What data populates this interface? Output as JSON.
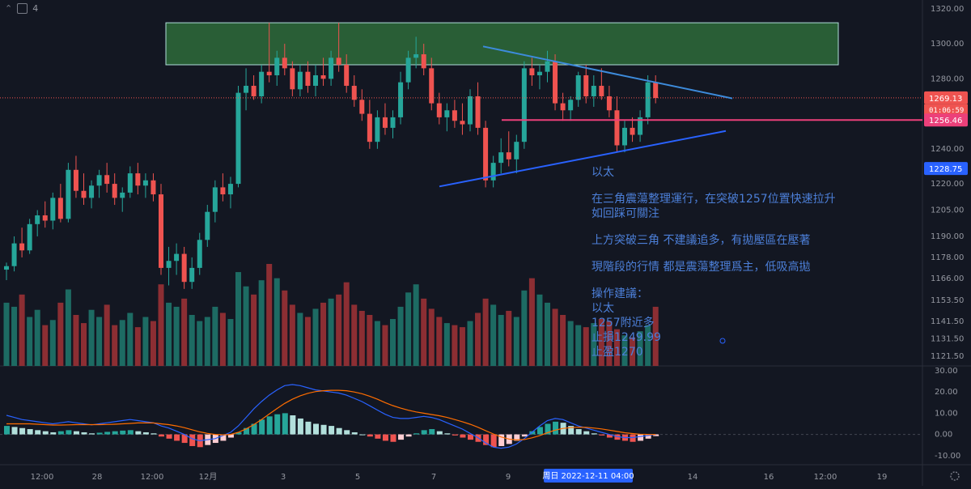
{
  "topbar": {
    "count": "4"
  },
  "colors": {
    "bg": "#131722",
    "up": "#26a69a",
    "down": "#ef5350",
    "upVol": "#1d6b63",
    "downVol": "#8c2e33",
    "trend": "#2962ff",
    "trendTop": "#3d8bdb",
    "support": "#ec407a",
    "zoneFill": "#2e6b3a",
    "zoneStroke": "#b2dfdb",
    "text": "#9598a1",
    "annot": "#4c7fd8"
  },
  "annotation": {
    "title": "以太",
    "line1": "在三角震蕩整理運行，在突破1257位置快速拉升",
    "line2": "如回踩可關注",
    "line3": "上方突破三角 不建議追多，有拋壓區在壓著",
    "line4": "現階段的行情 都是震蕩整理爲主，低吸高拋",
    "line5": "操作建議：",
    "line6": "以太",
    "line7": "1257附近多",
    "line8": "止損1249.99",
    "line9": "止盈1270"
  },
  "price_tags": {
    "current": "1269.13",
    "countdown": "01:06:59",
    "support": "1256.46",
    "crosshair": "1228.75"
  },
  "crosshair_date": "周日 2022-12-11  04:00",
  "chart_data": [
    {
      "type": "candlestick",
      "ylim": [
        1116,
        1325
      ],
      "y_ticks": [
        "1320.00",
        "1300.00",
        "1280.00",
        "1269.13",
        "1256.46",
        "1240.00",
        "1228.75",
        "1220.00",
        "1205.00",
        "1190.00",
        "1178.00",
        "1166.00",
        "1153.50",
        "1141.50",
        "1131.50",
        "1121.50"
      ],
      "x_ticks": [
        "12:00",
        "28",
        "12:00",
        "12月",
        "3",
        "5",
        "7",
        "9",
        "14",
        "16",
        "12:00",
        "19"
      ],
      "zone": {
        "from": 1288,
        "to": 1312
      },
      "support_level": 1256.46,
      "current_price": 1269.13,
      "triangle_upper": [
        [
          1298.5
        ],
        [
          1268.8
        ]
      ],
      "triangle_lower": [
        [
          1218.5
        ],
        [
          1250.2
        ]
      ],
      "candles": [
        [
          1171,
          1175,
          1165,
          1173
        ],
        [
          1173,
          1190,
          1170,
          1186
        ],
        [
          1186,
          1195,
          1178,
          1182
        ],
        [
          1182,
          1200,
          1180,
          1197
        ],
        [
          1197,
          1205,
          1190,
          1202
        ],
        [
          1202,
          1210,
          1195,
          1199
        ],
        [
          1199,
          1215,
          1194,
          1212
        ],
        [
          1212,
          1220,
          1198,
          1200
        ],
        [
          1200,
          1232,
          1198,
          1228
        ],
        [
          1228,
          1236,
          1212,
          1216
        ],
        [
          1216,
          1226,
          1208,
          1212
        ],
        [
          1212,
          1222,
          1206,
          1219
        ],
        [
          1219,
          1228,
          1212,
          1225
        ],
        [
          1225,
          1232,
          1215,
          1220
        ],
        [
          1220,
          1226,
          1208,
          1212
        ],
        [
          1212,
          1218,
          1204,
          1215
        ],
        [
          1215,
          1230,
          1212,
          1226
        ],
        [
          1226,
          1232,
          1214,
          1219
        ],
        [
          1219,
          1226,
          1212,
          1222
        ],
        [
          1222,
          1226,
          1210,
          1214
        ],
        [
          1214,
          1220,
          1168,
          1172
        ],
        [
          1172,
          1184,
          1162,
          1176
        ],
        [
          1176,
          1186,
          1168,
          1180
        ],
        [
          1180,
          1184,
          1160,
          1164
        ],
        [
          1164,
          1178,
          1160,
          1172
        ],
        [
          1172,
          1192,
          1168,
          1188
        ],
        [
          1188,
          1208,
          1184,
          1204
        ],
        [
          1204,
          1222,
          1198,
          1218
        ],
        [
          1218,
          1226,
          1210,
          1214
        ],
        [
          1214,
          1224,
          1206,
          1220
        ],
        [
          1220,
          1276,
          1218,
          1272
        ],
        [
          1272,
          1286,
          1262,
          1276
        ],
        [
          1276,
          1282,
          1268,
          1270
        ],
        [
          1270,
          1288,
          1266,
          1284
        ],
        [
          1284,
          1312,
          1278,
          1282
        ],
        [
          1282,
          1296,
          1276,
          1292
        ],
        [
          1292,
          1300,
          1282,
          1286
        ],
        [
          1286,
          1290,
          1270,
          1274
        ],
        [
          1274,
          1288,
          1270,
          1284
        ],
        [
          1284,
          1290,
          1272,
          1276
        ],
        [
          1276,
          1288,
          1270,
          1282
        ],
        [
          1282,
          1292,
          1276,
          1280
        ],
        [
          1280,
          1296,
          1276,
          1292
        ],
        [
          1292,
          1312,
          1284,
          1288
        ],
        [
          1288,
          1294,
          1272,
          1276
        ],
        [
          1276,
          1282,
          1264,
          1268
        ],
        [
          1268,
          1274,
          1256,
          1260
        ],
        [
          1260,
          1268,
          1240,
          1244
        ],
        [
          1244,
          1262,
          1240,
          1258
        ],
        [
          1258,
          1266,
          1248,
          1252
        ],
        [
          1252,
          1262,
          1246,
          1258
        ],
        [
          1258,
          1284,
          1254,
          1278
        ],
        [
          1278,
          1296,
          1274,
          1292
        ],
        [
          1292,
          1304,
          1286,
          1294
        ],
        [
          1294,
          1300,
          1282,
          1286
        ],
        [
          1286,
          1292,
          1262,
          1266
        ],
        [
          1266,
          1272,
          1254,
          1258
        ],
        [
          1258,
          1266,
          1250,
          1262
        ],
        [
          1262,
          1268,
          1252,
          1256
        ],
        [
          1256,
          1266,
          1248,
          1254
        ],
        [
          1254,
          1274,
          1250,
          1270
        ],
        [
          1270,
          1278,
          1248,
          1252
        ],
        [
          1252,
          1256,
          1218,
          1222
        ],
        [
          1222,
          1236,
          1218,
          1232
        ],
        [
          1232,
          1246,
          1226,
          1238
        ],
        [
          1238,
          1250,
          1230,
          1234
        ],
        [
          1234,
          1248,
          1226,
          1244
        ],
        [
          1244,
          1290,
          1240,
          1286
        ],
        [
          1286,
          1292,
          1276,
          1282
        ],
        [
          1282,
          1288,
          1274,
          1284
        ],
        [
          1284,
          1296,
          1278,
          1290
        ],
        [
          1290,
          1294,
          1262,
          1266
        ],
        [
          1266,
          1272,
          1256,
          1262
        ],
        [
          1262,
          1270,
          1256,
          1268
        ],
        [
          1268,
          1284,
          1264,
          1282
        ],
        [
          1282,
          1288,
          1266,
          1270
        ],
        [
          1270,
          1282,
          1264,
          1276
        ],
        [
          1276,
          1286,
          1268,
          1270
        ],
        [
          1270,
          1276,
          1258,
          1262
        ],
        [
          1262,
          1270,
          1238,
          1242
        ],
        [
          1242,
          1256,
          1238,
          1252
        ],
        [
          1252,
          1258,
          1244,
          1248
        ],
        [
          1248,
          1262,
          1244,
          1258
        ],
        [
          1258,
          1282,
          1254,
          1278
        ],
        [
          1278,
          1282,
          1266,
          1269
        ]
      ],
      "volumes": [
        62,
        58,
        70,
        48,
        55,
        40,
        45,
        62,
        75,
        50,
        42,
        55,
        48,
        60,
        40,
        45,
        52,
        38,
        48,
        44,
        80,
        62,
        58,
        66,
        50,
        44,
        48,
        58,
        52,
        46,
        92,
        78,
        70,
        84,
        100,
        86,
        74,
        60,
        52,
        48,
        56,
        62,
        66,
        70,
        82,
        60,
        54,
        50,
        44,
        40,
        46,
        58,
        72,
        80,
        66,
        56,
        48,
        42,
        40,
        38,
        44,
        52,
        66,
        60,
        50,
        54,
        48,
        74,
        86,
        70,
        62,
        56,
        50,
        44,
        40,
        38,
        42,
        46,
        44,
        36,
        30,
        28,
        34,
        40,
        58
      ]
    },
    {
      "type": "macd",
      "ylim": [
        -12,
        30
      ],
      "y_ticks": [
        "30.00",
        "20.00",
        "10.00",
        "0.00",
        "-10.00"
      ],
      "histogram": [
        4,
        3.5,
        3,
        2.5,
        2,
        1.5,
        1,
        1.5,
        2,
        1.5,
        1,
        0.5,
        0.8,
        1.2,
        1.5,
        1.8,
        2,
        1.5,
        1,
        0.5,
        -1,
        -2,
        -3,
        -4,
        -5.5,
        -6,
        -5,
        -4,
        -3,
        -1.5,
        1,
        3,
        5,
        7,
        8.5,
        9.5,
        10,
        9,
        7.5,
        6,
        5,
        4.5,
        4,
        3,
        2,
        1,
        0,
        -1,
        -2,
        -3,
        -3.5,
        -2.5,
        -1,
        0.5,
        2,
        2.5,
        1.5,
        0.5,
        -0.5,
        -1.5,
        -2.5,
        -3.5,
        -5,
        -6,
        -5.5,
        -4.5,
        -3,
        -1,
        1.5,
        3.5,
        5,
        6,
        5.5,
        4,
        2.5,
        1.5,
        0.5,
        -0.5,
        -1.5,
        -2.5,
        -3,
        -3.5,
        -3,
        -2,
        -0.8
      ],
      "macd": [
        9,
        8,
        7,
        6.5,
        6,
        5.5,
        5,
        5.5,
        6,
        5.5,
        5,
        4.5,
        5,
        5.5,
        6,
        6.5,
        7,
        6.5,
        6,
        5.5,
        4,
        3,
        1.5,
        0,
        -2,
        -3,
        -2.5,
        -2,
        -0.5,
        1,
        4,
        8,
        12,
        15.5,
        18.5,
        21,
        23,
        23.5,
        23,
        22,
        21,
        20.5,
        20,
        19.5,
        18.5,
        17,
        15.5,
        13.5,
        11.5,
        9.5,
        8,
        7.5,
        7.5,
        8,
        8.5,
        8,
        7,
        5.5,
        4,
        2.5,
        0.5,
        -1.5,
        -4,
        -6,
        -6.5,
        -6,
        -4.5,
        -2,
        1,
        4,
        6.5,
        7.5,
        7,
        5.5,
        4,
        3,
        2,
        1,
        0,
        -1,
        -1.5,
        -1.5,
        -1,
        -0.5,
        0
      ],
      "signal": [
        5,
        5,
        5,
        5,
        4.8,
        4.6,
        4.4,
        4.4,
        4.5,
        4.6,
        4.6,
        4.6,
        4.6,
        4.7,
        4.8,
        5,
        5.2,
        5.4,
        5.4,
        5.4,
        5,
        4.6,
        4,
        3.2,
        2.2,
        1.2,
        0.5,
        0,
        -0.2,
        0,
        1,
        2.6,
        4.6,
        7,
        9.6,
        12.2,
        14.6,
        16.6,
        18.2,
        19.4,
        20.2,
        20.6,
        20.8,
        20.8,
        20.6,
        20,
        19.2,
        18,
        16.6,
        15,
        13.6,
        12.4,
        11.4,
        10.6,
        10,
        9.4,
        8.8,
        8,
        7,
        6,
        4.8,
        3.4,
        1.8,
        0.2,
        -1.2,
        -2.2,
        -2.6,
        -2.4,
        -1.6,
        -0.6,
        0.8,
        2,
        2.8,
        3.2,
        3.4,
        3.3,
        3,
        2.6,
        2,
        1.4,
        0.8,
        0.4,
        0.1,
        0,
        0
      ]
    }
  ]
}
